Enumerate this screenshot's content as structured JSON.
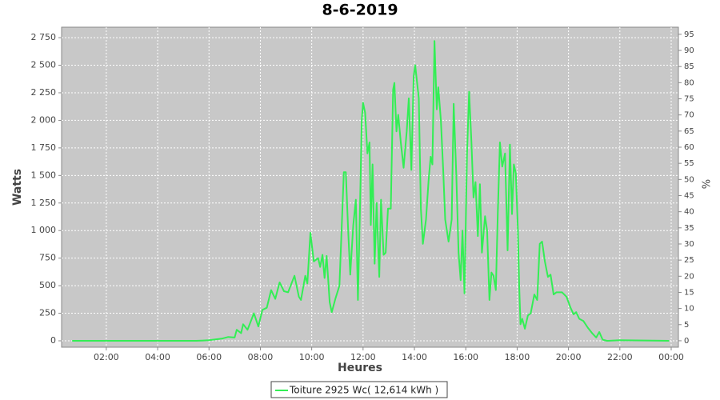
{
  "chart_data": {
    "type": "line",
    "title": "8-6-2019",
    "x_label": "Heures",
    "y_label": "Watts",
    "y2_label": "%",
    "xlim": [
      0.26,
      24.28
    ],
    "xticks": [
      {
        "value": 2,
        "label": "02:00"
      },
      {
        "value": 4,
        "label": "04:00"
      },
      {
        "value": 6,
        "label": "06:00"
      },
      {
        "value": 8,
        "label": "08:00"
      },
      {
        "value": 10,
        "label": "10:00"
      },
      {
        "value": 12,
        "label": "12:00"
      },
      {
        "value": 14,
        "label": "14:00"
      },
      {
        "value": 16,
        "label": "16:00"
      },
      {
        "value": 18,
        "label": "18:00"
      },
      {
        "value": 20,
        "label": "20:00"
      },
      {
        "value": 22,
        "label": "22:00"
      },
      {
        "value": 24,
        "label": "00:00"
      }
    ],
    "ylim": [
      -58,
      2845
    ],
    "yticks": [
      0,
      250,
      500,
      750,
      {
        "value": 1000,
        "label": "1 000"
      },
      {
        "value": 1250,
        "label": "1 250"
      },
      {
        "value": 1500,
        "label": "1 500"
      },
      {
        "value": 1750,
        "label": "1 750"
      },
      {
        "value": 2000,
        "label": "2 000"
      },
      {
        "value": 2250,
        "label": "2 250"
      },
      {
        "value": 2500,
        "label": "2 500"
      },
      {
        "value": 2750,
        "label": "2 750"
      }
    ],
    "y2lim": [
      -2,
      97.2
    ],
    "y2ticks": [
      0,
      5,
      10,
      15,
      20,
      25,
      30,
      35,
      40,
      45,
      50,
      55,
      60,
      65,
      70,
      75,
      80,
      85,
      90,
      95
    ],
    "grid": true,
    "legend": "bottom",
    "series": [
      {
        "name": "Toiture 2925 Wc( 12,614 kWh )",
        "color": "#33ee55",
        "x": [
          0.67,
          2,
          4,
          5.5,
          6,
          6.5,
          6.75,
          7,
          7.08,
          7.25,
          7.33,
          7.5,
          7.75,
          7.92,
          8.08,
          8.25,
          8.42,
          8.58,
          8.75,
          8.92,
          9.08,
          9.33,
          9.5,
          9.58,
          9.75,
          9.83,
          9.95,
          10.08,
          10.25,
          10.33,
          10.42,
          10.5,
          10.58,
          10.7,
          10.78,
          10.92,
          11.08,
          11.25,
          11.33,
          11.42,
          11.5,
          11.62,
          11.72,
          11.8,
          11.87,
          11.95,
          12,
          12.08,
          12.17,
          12.25,
          12.3,
          12.37,
          12.45,
          12.53,
          12.63,
          12.7,
          12.8,
          12.88,
          12.97,
          13.08,
          13.17,
          13.22,
          13.3,
          13.37,
          13.47,
          13.58,
          13.7,
          13.78,
          13.88,
          13.97,
          14.03,
          14.17,
          14.25,
          14.33,
          14.45,
          14.55,
          14.63,
          14.7,
          14.78,
          14.87,
          14.93,
          15.03,
          15.12,
          15.2,
          15.33,
          15.45,
          15.53,
          15.63,
          15.72,
          15.8,
          15.87,
          15.95,
          16.05,
          16.13,
          16.22,
          16.3,
          16.38,
          16.47,
          16.55,
          16.63,
          16.75,
          16.83,
          16.92,
          17,
          17.08,
          17.17,
          17.25,
          17.33,
          17.42,
          17.53,
          17.63,
          17.72,
          17.8,
          17.87,
          17.95,
          18.03,
          18.08,
          18.13,
          18.2,
          18.3,
          18.42,
          18.53,
          18.67,
          18.78,
          18.88,
          18.97,
          19.08,
          19.2,
          19.3,
          19.42,
          19.53,
          19.75,
          19.92,
          20.08,
          20.2,
          20.3,
          20.42,
          20.58,
          20.75,
          20.92,
          21.08,
          21.2,
          21.33,
          21.5,
          22,
          23.92
        ],
        "values": [
          0,
          0,
          0,
          0,
          5,
          20,
          35,
          30,
          100,
          70,
          150,
          100,
          250,
          130,
          280,
          300,
          460,
          380,
          530,
          450,
          440,
          590,
          400,
          370,
          590,
          520,
          980,
          720,
          750,
          670,
          780,
          570,
          770,
          350,
          260,
          380,
          500,
          1530,
          1530,
          1000,
          600,
          1050,
          1280,
          370,
          1100,
          2000,
          2160,
          2070,
          1700,
          1800,
          1050,
          1600,
          700,
          1250,
          580,
          1280,
          780,
          800,
          1200,
          1200,
          2280,
          2340,
          1900,
          2050,
          1800,
          1570,
          1900,
          2200,
          1550,
          2400,
          2500,
          2200,
          1200,
          880,
          1100,
          1450,
          1670,
          1600,
          2720,
          2100,
          2300,
          2000,
          1550,
          1100,
          900,
          1100,
          2150,
          1500,
          800,
          550,
          1000,
          430,
          1700,
          2260,
          1800,
          1300,
          1440,
          950,
          1420,
          800,
          1130,
          1000,
          370,
          620,
          590,
          460,
          1170,
          1800,
          1580,
          1700,
          820,
          1780,
          1150,
          1600,
          1520,
          1000,
          500,
          150,
          200,
          110,
          230,
          250,
          420,
          370,
          880,
          900,
          720,
          580,
          600,
          420,
          440,
          440,
          400,
          300,
          240,
          260,
          200,
          180,
          120,
          70,
          30,
          80,
          10,
          0,
          5,
          0
        ]
      }
    ]
  }
}
